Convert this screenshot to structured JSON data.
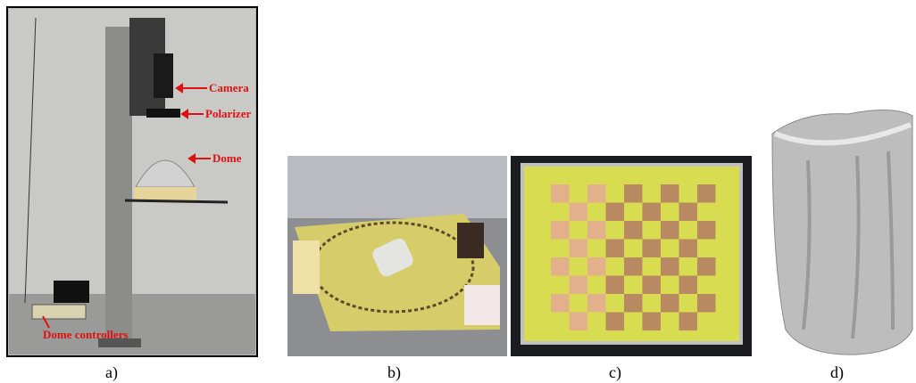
{
  "annotations": {
    "camera": "Camera",
    "polarizer": "Polarizer",
    "dome": "Dome",
    "controllers": "Dome controllers"
  },
  "captions": [
    "a)",
    "b)",
    "c)",
    "d)"
  ]
}
